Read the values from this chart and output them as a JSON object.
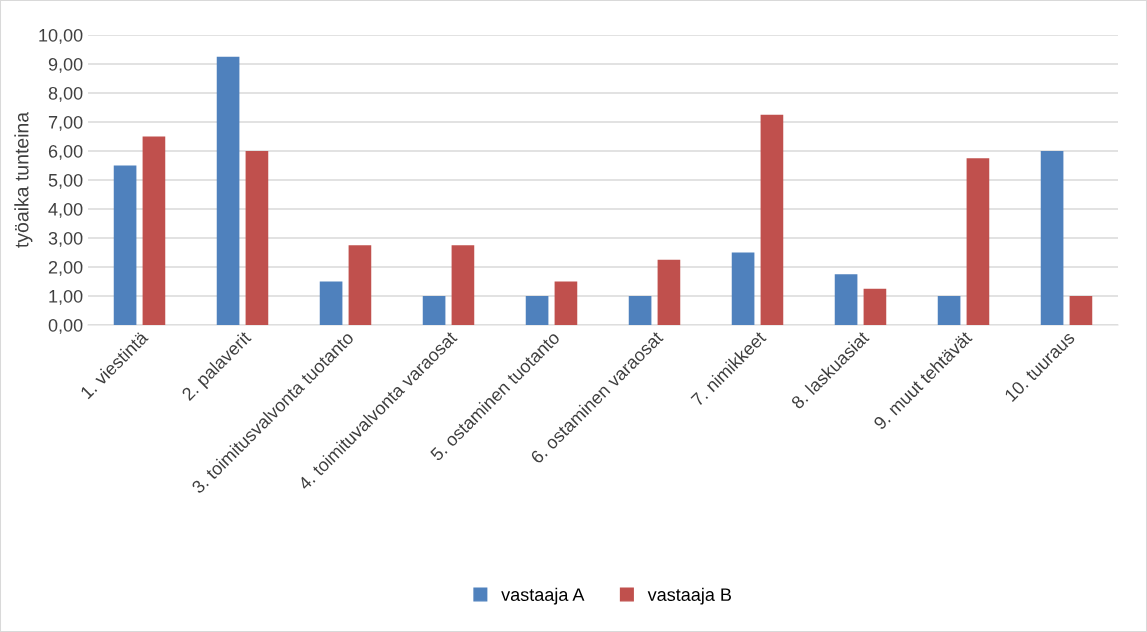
{
  "chart_data": {
    "type": "bar",
    "ylabel": "työaika tunteina",
    "categories": [
      "1. viestintä",
      "2. palaverit",
      "3. toimitusvalvonta tuotanto",
      "4. toimituvalvonta varaosat",
      "5. ostaminen tuotanto",
      "6. ostaminen varaosat",
      "7. nimikkeet",
      "8. laskuasiat",
      "9. muut tehtävät",
      "10. tuuraus"
    ],
    "series": [
      {
        "name": "vastaaja A",
        "color": "#4f81bd",
        "values": [
          5.5,
          9.25,
          1.5,
          1.0,
          1.0,
          1.0,
          2.5,
          1.75,
          1.0,
          6.0
        ]
      },
      {
        "name": "vastaaja B",
        "color": "#c0504d",
        "values": [
          6.5,
          6.0,
          2.75,
          2.75,
          1.5,
          2.25,
          7.25,
          1.25,
          5.75,
          1.0
        ]
      }
    ],
    "ylim": [
      0,
      10
    ],
    "yticks": [
      {
        "value": 0,
        "label": "0,00"
      },
      {
        "value": 1,
        "label": "1,00"
      },
      {
        "value": 2,
        "label": "2,00"
      },
      {
        "value": 3,
        "label": "3,00"
      },
      {
        "value": 4,
        "label": "4,00"
      },
      {
        "value": 5,
        "label": "5,00"
      },
      {
        "value": 6,
        "label": "6,00"
      },
      {
        "value": 7,
        "label": "7,00"
      },
      {
        "value": 8,
        "label": "8,00"
      },
      {
        "value": 9,
        "label": "9,00"
      },
      {
        "value": 10,
        "label": "10,00"
      }
    ],
    "grid": "y",
    "legend": "bottom"
  }
}
